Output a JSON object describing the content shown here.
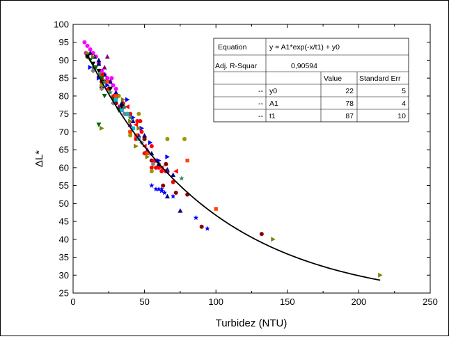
{
  "chart_data": {
    "type": "scatter",
    "xlabel": "Turbidez (NTU)",
    "ylabel": "ΔL*",
    "xlim": [
      0,
      250
    ],
    "ylim": [
      25,
      100
    ],
    "x_ticks": [
      0,
      50,
      100,
      150,
      200,
      250
    ],
    "y_ticks": [
      25,
      30,
      35,
      40,
      45,
      50,
      55,
      60,
      65,
      70,
      75,
      80,
      85,
      90,
      95,
      100
    ],
    "grid": false,
    "fit": {
      "equation": "y = A1*exp(-x/t1) + y0",
      "y0": 22,
      "A1": 78,
      "t1": 87,
      "x_range": [
        10,
        215
      ],
      "color": "#000000"
    },
    "fit_table": {
      "equation_label": "Equation",
      "equation": "y = A1*exp(-x/t1) + y0",
      "r_label": "Adj. R-Squar",
      "r_value": "0,90594",
      "col_value": "Value",
      "col_error": "Standard Err",
      "rows": [
        {
          "dash": "--",
          "name": "y0",
          "value": "22",
          "error": "5"
        },
        {
          "dash": "--",
          "name": "A1",
          "value": "78",
          "error": "4"
        },
        {
          "dash": "--",
          "name": "t1",
          "value": "87",
          "error": "10"
        }
      ]
    },
    "series": [
      {
        "marker": "circle",
        "color": "#ff00ff",
        "points": [
          [
            8,
            95
          ],
          [
            10,
            94
          ],
          [
            12,
            93
          ],
          [
            14,
            92
          ],
          [
            16,
            91
          ],
          [
            18,
            89
          ],
          [
            20,
            87
          ],
          [
            22,
            86
          ],
          [
            24,
            85
          ],
          [
            26,
            84
          ],
          [
            28,
            83
          ],
          [
            30,
            82
          ],
          [
            9,
            92
          ],
          [
            27,
            85
          ]
        ]
      },
      {
        "marker": "circle",
        "color": "#ff0000",
        "points": [
          [
            20,
            85
          ],
          [
            25,
            82
          ],
          [
            30,
            80
          ],
          [
            35,
            78
          ],
          [
            40,
            75
          ],
          [
            45,
            73
          ],
          [
            48,
            70
          ],
          [
            50,
            68
          ],
          [
            55,
            66
          ],
          [
            58,
            60
          ],
          [
            60,
            60
          ],
          [
            62,
            59
          ],
          [
            65,
            59
          ],
          [
            70,
            56
          ],
          [
            47,
            73
          ],
          [
            50,
            64
          ],
          [
            44,
            68
          ],
          [
            55,
            60
          ]
        ]
      },
      {
        "marker": "circle",
        "color": "#8b0000",
        "points": [
          [
            10,
            91
          ],
          [
            15,
            88
          ],
          [
            20,
            84
          ],
          [
            30,
            78
          ],
          [
            40,
            70
          ],
          [
            55,
            62
          ],
          [
            65,
            61
          ],
          [
            72,
            53
          ],
          [
            80,
            52.5
          ],
          [
            90,
            43.5
          ],
          [
            132,
            41.5
          ],
          [
            45,
            69
          ],
          [
            63,
            55
          ],
          [
            50,
            68
          ]
        ]
      },
      {
        "marker": "circle",
        "color": "#999900",
        "points": [
          [
            25,
            82
          ],
          [
            32,
            80
          ],
          [
            40,
            69
          ],
          [
            46,
            75
          ],
          [
            60,
            61
          ],
          [
            66,
            68
          ],
          [
            78,
            68
          ],
          [
            20,
            83
          ],
          [
            55,
            59
          ]
        ]
      },
      {
        "marker": "triangle-up",
        "color": "#000080",
        "points": [
          [
            12,
            92
          ],
          [
            15,
            91
          ],
          [
            18,
            89
          ],
          [
            22,
            86
          ],
          [
            26,
            84
          ],
          [
            30,
            81
          ],
          [
            34,
            78
          ],
          [
            38,
            75
          ],
          [
            42,
            73
          ],
          [
            50,
            69
          ],
          [
            55,
            64
          ],
          [
            60,
            61
          ],
          [
            66,
            59.5
          ],
          [
            70,
            58
          ],
          [
            75,
            48
          ],
          [
            66,
            52
          ],
          [
            18,
            90
          ]
        ]
      },
      {
        "marker": "triangle-up",
        "color": "#800080",
        "points": [
          [
            22,
            88
          ],
          [
            28,
            80
          ],
          [
            32,
            77
          ],
          [
            40,
            72
          ],
          [
            46,
            69
          ],
          [
            52,
            65
          ],
          [
            58,
            62
          ],
          [
            66,
            59
          ],
          [
            24,
            91
          ]
        ]
      },
      {
        "marker": "triangle-right",
        "color": "#0000ff",
        "points": [
          [
            12,
            88
          ],
          [
            18,
            85
          ],
          [
            24,
            83
          ],
          [
            30,
            80
          ],
          [
            36,
            77
          ],
          [
            42,
            74
          ],
          [
            48,
            71
          ],
          [
            54,
            67
          ],
          [
            60,
            62
          ],
          [
            66,
            63
          ],
          [
            38,
            79
          ]
        ]
      },
      {
        "marker": "triangle-right",
        "color": "#808000",
        "points": [
          [
            10,
            92
          ],
          [
            14,
            91
          ],
          [
            20,
            86
          ],
          [
            26,
            82
          ],
          [
            35,
            79
          ],
          [
            40,
            73
          ],
          [
            44,
            66
          ],
          [
            46,
            71
          ],
          [
            52,
            63
          ],
          [
            20,
            71
          ],
          [
            140,
            40
          ],
          [
            215,
            30
          ]
        ]
      },
      {
        "marker": "triangle-left",
        "color": "#ff0000",
        "points": [
          [
            20,
            86
          ],
          [
            24,
            82
          ],
          [
            28,
            80
          ],
          [
            34,
            76
          ],
          [
            38,
            77
          ],
          [
            44,
            72
          ],
          [
            50,
            66
          ],
          [
            56,
            62
          ],
          [
            62,
            60
          ],
          [
            72,
            59
          ],
          [
            35,
            77
          ]
        ]
      },
      {
        "marker": "triangle-down",
        "color": "#000000",
        "points": [
          [
            10,
            91
          ],
          [
            14,
            89
          ],
          [
            18,
            87
          ],
          [
            22,
            84
          ],
          [
            26,
            82
          ],
          [
            30,
            79
          ],
          [
            34,
            77
          ],
          [
            20,
            82
          ]
        ]
      },
      {
        "marker": "triangle-down",
        "color": "#006400",
        "points": [
          [
            12,
            90
          ],
          [
            16,
            88
          ],
          [
            20,
            85
          ],
          [
            22,
            80
          ],
          [
            28,
            79
          ],
          [
            32,
            76
          ],
          [
            18,
            72
          ]
        ]
      },
      {
        "marker": "star",
        "color": "#0000ff",
        "points": [
          [
            55,
            55
          ],
          [
            58,
            54
          ],
          [
            60,
            54
          ],
          [
            62,
            53.5
          ],
          [
            64,
            53
          ],
          [
            70,
            52
          ],
          [
            86,
            46
          ],
          [
            94,
            43
          ],
          [
            62,
            54
          ]
        ]
      },
      {
        "marker": "star",
        "color": "#2e8b57",
        "points": [
          [
            14,
            88
          ],
          [
            18,
            86
          ],
          [
            22,
            84
          ],
          [
            26,
            81
          ],
          [
            30,
            79
          ],
          [
            36,
            77
          ],
          [
            40,
            74
          ],
          [
            76,
            57
          ]
        ]
      },
      {
        "marker": "square",
        "color": "#ff4500",
        "points": [
          [
            24,
            84
          ],
          [
            30,
            80
          ],
          [
            40,
            70
          ],
          [
            52,
            64
          ],
          [
            80,
            62
          ],
          [
            100,
            48.5
          ],
          [
            44,
            69
          ]
        ]
      },
      {
        "marker": "square",
        "color": "#00bcd4",
        "points": [
          [
            30,
            79
          ],
          [
            34,
            76
          ],
          [
            38,
            75
          ],
          [
            42,
            71
          ],
          [
            46,
            68
          ]
        ]
      },
      {
        "marker": "diamond",
        "color": "#808080",
        "points": [
          [
            14,
            87
          ],
          [
            20,
            82
          ],
          [
            28,
            78
          ],
          [
            36,
            75
          ],
          [
            48,
            67
          ],
          [
            56,
            61
          ]
        ]
      }
    ]
  }
}
